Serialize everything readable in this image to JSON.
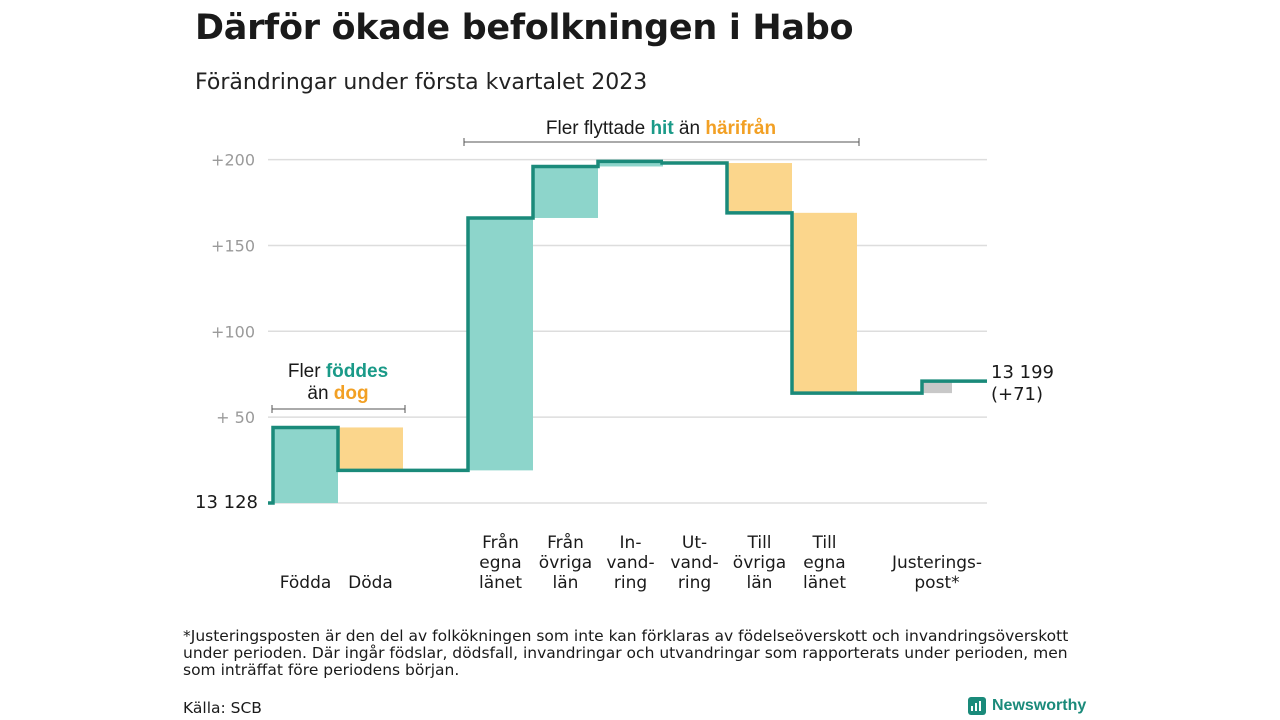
{
  "title": "Därför ökade befolkningen i Habo",
  "subtitle": "Förändringar under första kvartalet 2023",
  "colors": {
    "increase": "#8dd5cb",
    "decrease": "#fbd68c",
    "adjustment": "#c8c8c8",
    "line": "#1a8a7a",
    "hit": "#1a9a88",
    "harifran": "#f2a024",
    "grid": "#dddddd",
    "tick": "#9a9a9a"
  },
  "annotations": {
    "left": {
      "line1_pre": "Fler ",
      "line1_em": "föddes",
      "line2_pre": "än ",
      "line2_em": "dog"
    },
    "top": {
      "pre": "Fler flyttade ",
      "em1": "hit",
      "mid": " än ",
      "em2": "härifrån"
    }
  },
  "start_label": "13 128",
  "end_label_line1": "13 199",
  "end_label_line2": "(+71)",
  "footnote": "*Justeringsposten är den del av folkökningen som inte kan förklaras av födelseöverskott och invandringsöverskott under perioden. Där ingår födslar, dödsfall, invandringar och utvandringar som rapporterats under perioden, men som inträffat före periodens början.",
  "source": "Källa: SCB",
  "brand": "Newsworthy",
  "chart_data": {
    "type": "waterfall",
    "title": "Därför ökade befolkningen i Habo",
    "subtitle": "Förändringar under första kvartalet 2023",
    "baseline_population": 13128,
    "final_population": 13199,
    "net_change": 71,
    "y_axis": {
      "unit": "change vs. start",
      "range": [
        0,
        200
      ],
      "ticks": [
        {
          "value": 50,
          "label": "+ 50"
        },
        {
          "value": 100,
          "label": "+100"
        },
        {
          "value": 150,
          "label": "+150"
        },
        {
          "value": 200,
          "label": "+200"
        }
      ]
    },
    "grid": true,
    "steps": [
      {
        "label_lines": [
          "Födda"
        ],
        "value": 44,
        "kind": "increase"
      },
      {
        "label_lines": [
          "Döda"
        ],
        "value": -25,
        "kind": "decrease"
      },
      {
        "label_lines": [
          "Från",
          "egna",
          "länet"
        ],
        "value": 147,
        "kind": "increase"
      },
      {
        "label_lines": [
          "Från",
          "övriga",
          "län"
        ],
        "value": 30,
        "kind": "increase"
      },
      {
        "label_lines": [
          "In-",
          "vand-",
          "ring"
        ],
        "value": 3,
        "kind": "increase"
      },
      {
        "label_lines": [
          "Ut-",
          "vand-",
          "ring"
        ],
        "value": -1,
        "kind": "decrease"
      },
      {
        "label_lines": [
          "Till",
          "övriga",
          "län"
        ],
        "value": -29,
        "kind": "decrease"
      },
      {
        "label_lines": [
          "Till",
          "egna",
          "länet"
        ],
        "value": -105,
        "kind": "decrease"
      },
      {
        "label_lines": [
          "Justerings-",
          "post*"
        ],
        "value": 7,
        "kind": "adjustment"
      }
    ]
  }
}
